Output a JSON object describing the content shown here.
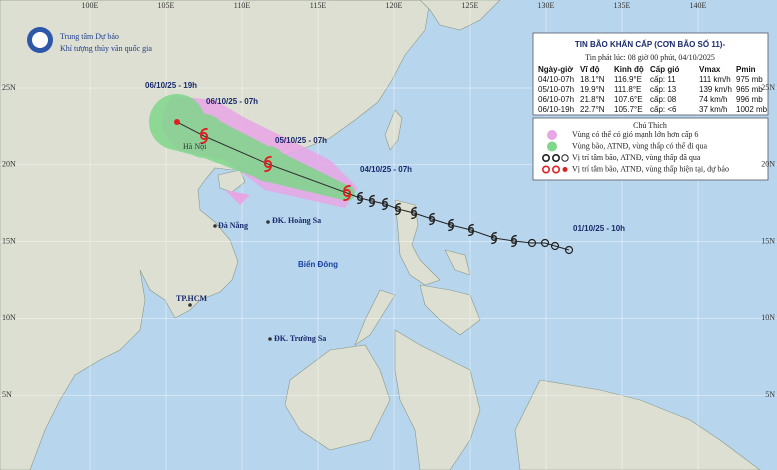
{
  "lon_labels": [
    "100E",
    "105E",
    "110E",
    "115E",
    "120E",
    "125E",
    "130E",
    "135E",
    "140E"
  ],
  "lat_labels": [
    "25N",
    "20N",
    "15N",
    "10N",
    "5N"
  ],
  "agency": {
    "line1": "Trung tâm Dự báo",
    "line2": "Khí tượng thủy văn quốc gia"
  },
  "bulletin": {
    "title": "TIN BÃO KHẨN CẤP (CƠN BÃO SỐ 11)-",
    "issued": "Tin phát lúc: 08 giờ 00 phút, 04/10/2025",
    "columns": [
      "Ngày-giờ",
      "Vĩ độ",
      "Kinh độ",
      "Cấp gió",
      "Vmax",
      "Pmin"
    ],
    "rows": [
      [
        "04/10-07h",
        "18.1°N",
        "116.9°E",
        "cấp: 11",
        "111 km/h",
        "975 mb"
      ],
      [
        "05/10-07h",
        "19.9°N",
        "111.8°E",
        "cấp: 13",
        "139 km/h",
        "965 mb"
      ],
      [
        "06/10-07h",
        "21.8°N",
        "107.6°E",
        "cấp: 08",
        "74 km/h",
        "996 mb"
      ],
      [
        "06/10-19h",
        "22.7°N",
        "105.7°E",
        "cấp: <6",
        "37 km/h",
        "1002 mb"
      ]
    ]
  },
  "legend": {
    "title": "Chú Thích",
    "items": [
      "Vùng có thể có gió mạnh lớn hơn cấp 6",
      "Vùng bão, ATNĐ, vùng thấp có thể đi qua",
      "Vị trí tâm bão, ATNĐ, vùng thấp đã qua",
      "Vị trí tâm bão, ATNĐ, vùng thấp hiện tại, dự báo"
    ]
  },
  "track_labels": [
    "06/10/25 - 19h",
    "06/10/25 - 07h",
    "05/10/25 - 07h",
    "04/10/25 - 07h",
    "01/10/25 - 10h"
  ],
  "places": [
    "Hà Nội",
    "Đà Nẵng",
    "ĐK. Hoàng Sa",
    "Biển Đông",
    "TP.HCM",
    "ĐK. Trường Sa"
  ]
}
